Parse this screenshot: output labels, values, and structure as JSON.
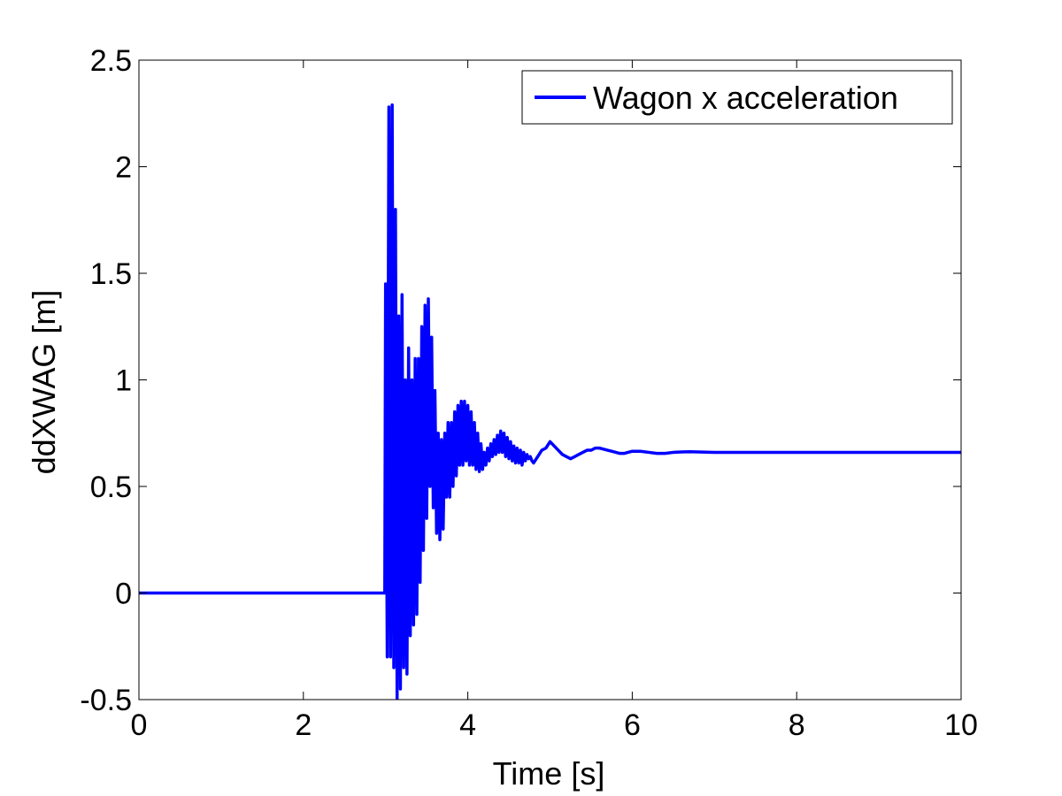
{
  "chart_data": {
    "type": "line",
    "title": "",
    "xlabel": "Time [s]",
    "ylabel": "ddXWAG [m]",
    "xlim": [
      0,
      10
    ],
    "ylim": [
      -0.5,
      2.5
    ],
    "xticks": [
      0,
      2,
      4,
      6,
      8,
      10
    ],
    "xtick_labels": [
      "0",
      "2",
      "4",
      "6",
      "8",
      "10"
    ],
    "yticks": [
      -0.5,
      0,
      0.5,
      1,
      1.5,
      2,
      2.5
    ],
    "ytick_labels": [
      "-0.5",
      "0",
      "0.5",
      "1",
      "1.5",
      "2",
      "2.5"
    ],
    "grid": false,
    "legend_position": "top-right",
    "colors": {
      "series": "#0000ff",
      "axes": "#000000",
      "background": "#ffffff"
    },
    "series": [
      {
        "name": "Wagon x acceleration",
        "x": [
          0,
          1,
          2,
          2.99,
          3.0,
          3.02,
          3.04,
          3.06,
          3.08,
          3.1,
          3.12,
          3.14,
          3.16,
          3.18,
          3.2,
          3.22,
          3.24,
          3.26,
          3.28,
          3.3,
          3.32,
          3.34,
          3.36,
          3.38,
          3.4,
          3.42,
          3.44,
          3.46,
          3.48,
          3.5,
          3.52,
          3.54,
          3.56,
          3.58,
          3.6,
          3.62,
          3.64,
          3.66,
          3.68,
          3.7,
          3.72,
          3.74,
          3.76,
          3.78,
          3.8,
          3.82,
          3.84,
          3.86,
          3.88,
          3.9,
          3.92,
          3.94,
          3.96,
          3.98,
          4.0,
          4.02,
          4.04,
          4.06,
          4.08,
          4.1,
          4.12,
          4.14,
          4.16,
          4.18,
          4.2,
          4.22,
          4.24,
          4.26,
          4.28,
          4.3,
          4.32,
          4.34,
          4.36,
          4.38,
          4.4,
          4.42,
          4.44,
          4.46,
          4.48,
          4.5,
          4.52,
          4.54,
          4.56,
          4.58,
          4.6,
          4.62,
          4.64,
          4.66,
          4.68,
          4.7,
          4.72,
          4.74,
          4.76,
          4.78,
          4.8,
          4.85,
          4.9,
          4.95,
          5.0,
          5.05,
          5.1,
          5.15,
          5.2,
          5.25,
          5.3,
          5.35,
          5.4,
          5.45,
          5.5,
          5.55,
          5.6,
          5.65,
          5.7,
          5.75,
          5.8,
          5.85,
          5.9,
          5.95,
          6.0,
          6.1,
          6.2,
          6.3,
          6.4,
          6.5,
          6.6,
          6.7,
          6.8,
          6.9,
          7.0,
          7.5,
          8.0,
          8.5,
          9.0,
          9.5,
          10.0
        ],
        "y": [
          0,
          0,
          0,
          0,
          1.45,
          -0.3,
          2.28,
          -0.3,
          2.29,
          -0.35,
          1.8,
          -0.5,
          1.3,
          -0.45,
          1.4,
          -0.35,
          1.0,
          -0.38,
          1.15,
          -0.2,
          1.0,
          -0.15,
          1.1,
          -0.1,
          1.1,
          0.05,
          1.25,
          0.2,
          1.35,
          0.35,
          1.38,
          0.5,
          1.2,
          0.4,
          0.95,
          0.28,
          0.75,
          0.25,
          0.72,
          0.3,
          0.75,
          0.45,
          0.8,
          0.45,
          0.8,
          0.5,
          0.85,
          0.55,
          0.88,
          0.6,
          0.9,
          0.6,
          0.9,
          0.62,
          0.88,
          0.6,
          0.85,
          0.6,
          0.8,
          0.58,
          0.75,
          0.57,
          0.7,
          0.58,
          0.66,
          0.6,
          0.68,
          0.62,
          0.7,
          0.64,
          0.72,
          0.65,
          0.74,
          0.66,
          0.76,
          0.66,
          0.75,
          0.64,
          0.73,
          0.63,
          0.71,
          0.62,
          0.69,
          0.61,
          0.68,
          0.61,
          0.67,
          0.6,
          0.66,
          0.62,
          0.65,
          0.63,
          0.64,
          0.62,
          0.61,
          0.64,
          0.67,
          0.68,
          0.71,
          0.69,
          0.67,
          0.65,
          0.64,
          0.63,
          0.64,
          0.65,
          0.66,
          0.67,
          0.67,
          0.68,
          0.68,
          0.675,
          0.67,
          0.665,
          0.66,
          0.655,
          0.655,
          0.66,
          0.665,
          0.665,
          0.66,
          0.655,
          0.655,
          0.66,
          0.662,
          0.663,
          0.662,
          0.661,
          0.66,
          0.66,
          0.66,
          0.66,
          0.66,
          0.66,
          0.66
        ]
      }
    ]
  }
}
